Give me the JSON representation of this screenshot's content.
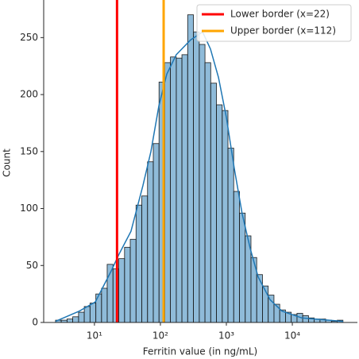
{
  "chart_data": {
    "type": "histogram",
    "xlabel": "Ferritin value (in ng/mL)",
    "ylabel": "Count",
    "log_x": true,
    "color": "#1f77b4",
    "bins": [
      2.57,
      3.14,
      3.84,
      4.69,
      5.74,
      7.01,
      8.57,
      10.5,
      12.8,
      15.6,
      19.1,
      23.4,
      28.6,
      34.9,
      42.7,
      52.2,
      63.8,
      78.0,
      95.3,
      116,
      142,
      174,
      212,
      259,
      317,
      388,
      474,
      579,
      708,
      865,
      1057,
      1292,
      1580,
      1931,
      2360,
      2885,
      3526,
      4310,
      5268,
      6439,
      7871,
      9620,
      11760,
      14370,
      17570,
      21470,
      26250,
      32080,
      39210,
      47930,
      58580
    ],
    "values": [
      2,
      2,
      3,
      5,
      9,
      14,
      17,
      25,
      30,
      51,
      47,
      56,
      66,
      73,
      103,
      111,
      141,
      157,
      211,
      228,
      233,
      232,
      235,
      270,
      255,
      244,
      228,
      210,
      191,
      186,
      153,
      115,
      96,
      76,
      57,
      42,
      32,
      24,
      16,
      11,
      9,
      7,
      8,
      6,
      4,
      3,
      3,
      2,
      1,
      2
    ],
    "kde": {
      "color": "#1f77b4",
      "x": [
        2.57,
        5.9,
        10.3,
        17.9,
        23.6,
        35.8,
        54.3,
        71.7,
        94.6,
        125,
        174,
        287,
        436,
        574,
        759,
        1000,
        1319,
        1740,
        2296,
        3032,
        4600,
        6970,
        13960,
        59020
      ],
      "values": [
        1,
        10,
        18,
        45,
        60,
        80,
        120,
        150,
        190,
        218,
        235,
        248,
        255,
        240,
        215,
        180,
        135,
        95,
        65,
        40,
        20,
        10,
        4,
        1
      ]
    },
    "vlines": [
      {
        "name": "Lower border (x=22)",
        "x": 22,
        "color": "#ff0000"
      },
      {
        "name": "Upper border (x=112)",
        "x": 112,
        "color": "#ffa500"
      }
    ],
    "legend": "upper right",
    "xlim": [
      1.7,
      97000
    ],
    "ylim": [
      0,
      283
    ],
    "xticks": [
      {
        "value": 10,
        "label": "10¹"
      },
      {
        "value": 100,
        "label": "10²"
      },
      {
        "value": 1000,
        "label": "10³"
      },
      {
        "value": 10000,
        "label": "10⁴"
      }
    ],
    "yticks": [
      0,
      50,
      100,
      150,
      200,
      250
    ]
  }
}
